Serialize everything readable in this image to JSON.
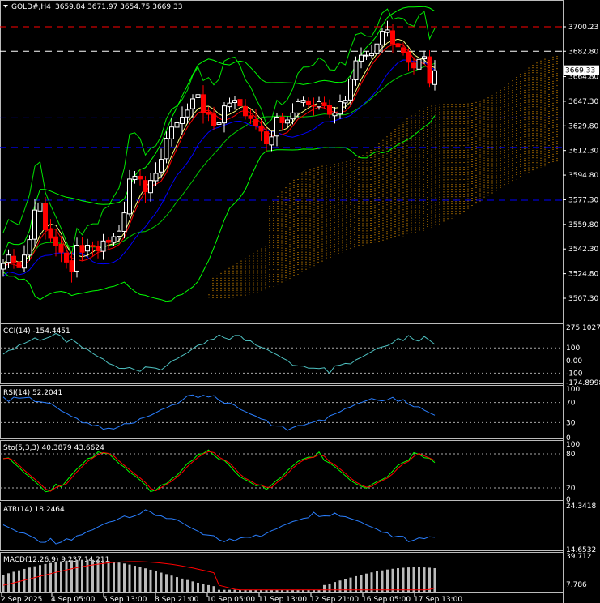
{
  "chart_data": {
    "type": "candlestick",
    "symbol_label": "GOLD#,H4",
    "ohlc_label": "3659.84 3671.97 3654.75 3669.33",
    "ohlc": {
      "open": 3659.84,
      "high": 3671.97,
      "low": 3654.75,
      "close": 3669.33
    },
    "current_price": "3669.33",
    "price_axis": {
      "ylim": [
        3507.3,
        3700.23
      ],
      "ticks": [
        "3700.23",
        "3682.80",
        "3664.80",
        "3647.30",
        "3629.80",
        "3612.30",
        "3594.80",
        "3577.30",
        "3559.80",
        "3542.30",
        "3524.80",
        "3507.30"
      ]
    },
    "x_labels": [
      "2 Sep 2025",
      "4 Sep 05:00",
      "5 Sep 13:00",
      "8 Sep 21:00",
      "10 Sep 05:00",
      "11 Sep 13:00",
      "12 Sep 21:00",
      "16 Sep 05:00",
      "17 Sep 13:00"
    ],
    "candle_closes": [
      3532,
      3538,
      3533,
      3529,
      3538,
      3549,
      3570,
      3575,
      3556,
      3550,
      3545,
      3540,
      3533,
      3526,
      3545,
      3540,
      3545,
      3544,
      3541,
      3548,
      3547,
      3551,
      3555,
      3568,
      3592,
      3594,
      3592,
      3583,
      3591,
      3596,
      3606,
      3621,
      3629,
      3632,
      3636,
      3641,
      3649,
      3652,
      3639,
      3638,
      3630,
      3632,
      3644,
      3646,
      3648,
      3644,
      3637,
      3635,
      3630,
      3626,
      3617,
      3622,
      3636,
      3632,
      3634,
      3639,
      3647,
      3648,
      3645,
      3644,
      3647,
      3644,
      3638,
      3639,
      3647,
      3648,
      3663,
      3676,
      3680,
      3680,
      3681,
      3688,
      3697,
      3698,
      3688,
      3686,
      3682,
      3675,
      3671,
      3677,
      3679,
      3660,
      3669
    ],
    "levels": [
      3700.23,
      3682.8,
      3635.5,
      3614.5,
      3577.0
    ],
    "panels": [
      {
        "label": "CCI(14) -154.4451",
        "ticks": [
          "275.1027",
          "100",
          "0.00",
          "-100",
          "-174.8998"
        ],
        "ylim": [
          -174.9,
          275.1
        ],
        "levels": [
          100,
          -100
        ]
      },
      {
        "label": "RSI(14) 52.2041",
        "ticks": [
          "100",
          "70",
          "30",
          "0"
        ],
        "ylim": [
          0,
          100
        ],
        "levels": [
          70,
          30
        ]
      },
      {
        "label": "Sto(5,3,3) 40.3879 43.6624",
        "ticks": [
          "100",
          "80",
          "20",
          "0"
        ],
        "ylim": [
          0,
          100
        ],
        "levels": [
          80,
          20
        ]
      },
      {
        "label": "ATR(14) 18.2464",
        "ticks": [
          "24.3418",
          "14.6532"
        ],
        "ylim": [
          14.6532,
          24.3418
        ]
      },
      {
        "label": "MACD(12,26,9) 9.237 14.211",
        "ticks": [
          "39.712",
          "7.786"
        ],
        "ylim": [
          0,
          39.712
        ]
      }
    ],
    "colors": {
      "background": "#000000",
      "bull": "#ffffff",
      "bear": "#ff0000",
      "level_red": "#ff0000",
      "level_blue": "#0000ff",
      "level_white": "#ffffff",
      "cloud": "#ffa500",
      "indicator_line": "#00ff00"
    }
  }
}
